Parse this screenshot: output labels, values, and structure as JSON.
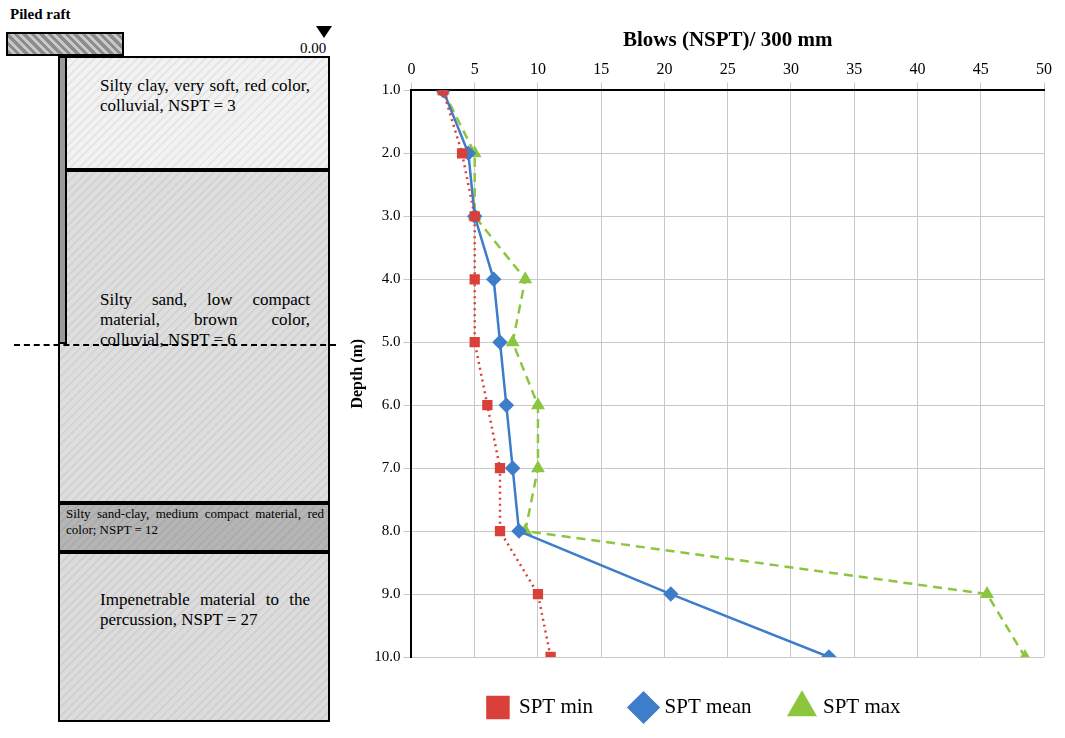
{
  "chart_data": {
    "type": "line",
    "x_label": "Blows (NSPT)/ 300 mm",
    "y_label": "Depth (m)",
    "xlim": [
      0,
      50
    ],
    "xticks": [
      0,
      5,
      10,
      15,
      20,
      25,
      30,
      35,
      40,
      45,
      50
    ],
    "ylim": [
      1,
      10
    ],
    "yticks": [
      {
        "value": 1,
        "label": "1.0"
      },
      {
        "value": 2,
        "label": "2.0"
      },
      {
        "value": 3,
        "label": "3.0"
      },
      {
        "value": 4,
        "label": "4.0"
      },
      {
        "value": 5,
        "label": "5.0"
      },
      {
        "value": 6,
        "label": "6.0"
      },
      {
        "value": 7,
        "label": "7.0"
      },
      {
        "value": 8,
        "label": "8.0"
      },
      {
        "value": 9,
        "label": "9.0"
      },
      {
        "value": 10,
        "label": "10.0"
      }
    ],
    "grid": true,
    "legend": "bottom",
    "series": [
      {
        "name": "SPT min",
        "color": "#d9403a",
        "marker": "square",
        "line_style": "dotted",
        "x": [
          2.5,
          4,
          5,
          5,
          5,
          6,
          7,
          7,
          10,
          11
        ],
        "y": [
          1,
          2,
          3,
          4,
          5,
          6,
          7,
          8,
          9,
          10
        ]
      },
      {
        "name": "SPT mean",
        "color": "#3d7dca",
        "marker": "diamond",
        "line_style": "solid",
        "x": [
          2.5,
          4.5,
          5,
          6.5,
          7,
          7.5,
          8,
          8.5,
          20.5,
          33
        ],
        "y": [
          1,
          2,
          3,
          4,
          5,
          6,
          7,
          8,
          9,
          10
        ]
      },
      {
        "name": "SPT max",
        "color": "#8cc63f",
        "marker": "triangle",
        "line_style": "dashed",
        "x": [
          2.5,
          5,
          5,
          9,
          8,
          10,
          10,
          9,
          45.5,
          48.5
        ],
        "y": [
          1,
          2,
          3,
          4,
          5,
          6,
          7,
          8,
          9,
          10
        ]
      }
    ]
  },
  "profile": {
    "foundation": "Piled raft",
    "ground_level": "0.00",
    "layers": [
      "Silty clay, very soft, red color, colluvial, NSPT = 3",
      "Silty sand, low compact material, brown color, colluvial, NSPT = 6",
      "Silty sand-clay, medium compact material, red color; NSPT = 12",
      "Impenetrable material to the percussion, NSPT = 27"
    ]
  }
}
